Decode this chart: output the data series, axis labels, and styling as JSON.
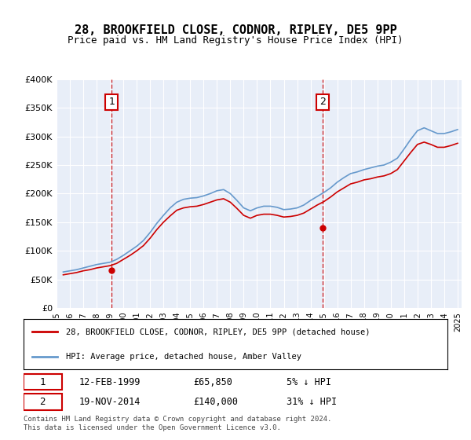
{
  "title": "28, BROOKFIELD CLOSE, CODNOR, RIPLEY, DE5 9PP",
  "subtitle": "Price paid vs. HM Land Registry's House Price Index (HPI)",
  "legend_line1": "28, BROOKFIELD CLOSE, CODNOR, RIPLEY, DE5 9PP (detached house)",
  "legend_line2": "HPI: Average price, detached house, Amber Valley",
  "sale1_date": 1999.12,
  "sale1_price": 65850,
  "sale1_label": "1",
  "sale1_info": "12-FEB-1999",
  "sale1_amount": "£65,850",
  "sale1_hpi": "5% ↓ HPI",
  "sale2_date": 2014.9,
  "sale2_price": 140000,
  "sale2_label": "2",
  "sale2_info": "19-NOV-2014",
  "sale2_amount": "£140,000",
  "sale2_hpi": "31% ↓ HPI",
  "footer": "Contains HM Land Registry data © Crown copyright and database right 2024.\nThis data is licensed under the Open Government Licence v3.0.",
  "red_color": "#cc0000",
  "blue_color": "#6699cc",
  "bg_color": "#e8eef8",
  "ylim": [
    0,
    400000
  ],
  "xlim_start": 1995.5,
  "xlim_end": 2025.3
}
